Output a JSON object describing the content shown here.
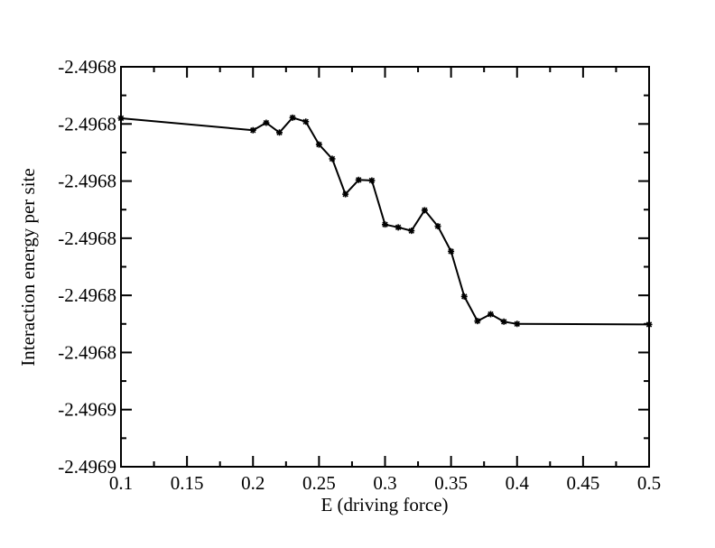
{
  "chart_data": {
    "type": "line",
    "title": "",
    "xlabel": "E (driving force)",
    "ylabel": "Interaction energy per site",
    "xlim": [
      0.1,
      0.5
    ],
    "ylim": [
      -2.49688,
      -2.49681
    ],
    "grid": false,
    "x_ticks": [
      0.1,
      0.15,
      0.2,
      0.25,
      0.3,
      0.35,
      0.4,
      0.45,
      0.5
    ],
    "x_tick_labels": [
      "0.1",
      "0.15",
      "0.2",
      "0.25",
      "0.3",
      "0.35",
      "0.4",
      "0.45",
      "0.5"
    ],
    "y_ticks": [
      -2.49681,
      -2.49682,
      -2.49683,
      -2.49684,
      -2.49685,
      -2.49686,
      -2.49687,
      -2.49688
    ],
    "y_tick_labels": [
      "-2.4968",
      "-2.4968",
      "-2.4968",
      "-2.4968",
      "-2.4968",
      "-2.4968",
      "-2.4969",
      "-2.4969"
    ],
    "series": [
      {
        "color": "#000000",
        "marker": "star",
        "x": [
          0.1,
          0.2,
          0.21,
          0.22,
          0.23,
          0.24,
          0.25,
          0.26,
          0.27,
          0.28,
          0.29,
          0.3,
          0.31,
          0.32,
          0.33,
          0.34,
          0.35,
          0.36,
          0.37,
          0.38,
          0.39,
          0.4,
          0.5
        ],
        "y": [
          -2.496819,
          -2.4968211,
          -2.4968198,
          -2.4968215,
          -2.4968189,
          -2.4968196,
          -2.4968236,
          -2.4968261,
          -2.4968323,
          -2.4968298,
          -2.4968299,
          -2.4968376,
          -2.4968381,
          -2.4968387,
          -2.4968351,
          -2.4968379,
          -2.4968423,
          -2.4968502,
          -2.4968545,
          -2.4968533,
          -2.4968546,
          -2.496855,
          -2.4968551
        ]
      }
    ]
  }
}
